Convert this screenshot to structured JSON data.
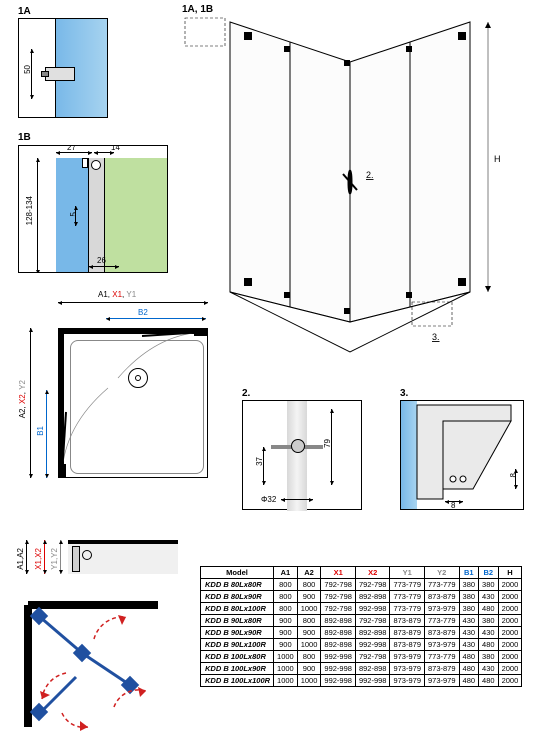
{
  "labels": {
    "d1a": "1A",
    "d1b": "1B",
    "d1a1b": "1A, 1B",
    "d2": "2.",
    "d3": "3.",
    "a1": "A1",
    "a2": "A2",
    "x1": "X1",
    "x2": "X2",
    "y1": "Y1",
    "y2": "Y2",
    "b1": "B1",
    "b2": "B2",
    "h": "H",
    "a1a2": "A1,A2",
    "x1x2": "X1,X2",
    "y1y2": "Y1,Y2",
    "a1x1y1": "A1, X1, Y1",
    "a2x2y2": "A2, X2, Y2"
  },
  "dims": {
    "d1a_50": "50",
    "d1b_27": "27",
    "d1b_14": "14",
    "d1b_5": "5",
    "d1b_26": "26",
    "d1b_128_134": "128-134",
    "d2_37": "37",
    "d2_79": "79",
    "d2_phi32": "Φ32",
    "d3_8h": "8",
    "d3_8v": "8"
  },
  "table": {
    "headers": {
      "model": "Model",
      "a1": "A1",
      "a2": "A2",
      "x1": "X1",
      "x2": "X2",
      "y1": "Y1",
      "y2": "Y2",
      "b1": "B1",
      "b2": "B2",
      "h": "H"
    },
    "rows": [
      {
        "model": "KDD B 80Lx80R",
        "a1": "800",
        "a2": "800",
        "x1": "792-798",
        "x2": "792-798",
        "y1": "773-779",
        "y2": "773-779",
        "b1": "380",
        "b2": "380",
        "h": "2000"
      },
      {
        "model": "KDD B 80Lx90R",
        "a1": "800",
        "a2": "900",
        "x1": "792-798",
        "x2": "892-898",
        "y1": "773-779",
        "y2": "873-879",
        "b1": "380",
        "b2": "430",
        "h": "2000"
      },
      {
        "model": "KDD B 80Lx100R",
        "a1": "800",
        "a2": "1000",
        "x1": "792-798",
        "x2": "992-998",
        "y1": "773-779",
        "y2": "973-979",
        "b1": "380",
        "b2": "480",
        "h": "2000"
      },
      {
        "model": "KDD B 90Lx80R",
        "a1": "900",
        "a2": "800",
        "x1": "892-898",
        "x2": "792-798",
        "y1": "873-879",
        "y2": "773-779",
        "b1": "430",
        "b2": "380",
        "h": "2000"
      },
      {
        "model": "KDD B 90Lx90R",
        "a1": "900",
        "a2": "900",
        "x1": "892-898",
        "x2": "892-898",
        "y1": "873-879",
        "y2": "873-879",
        "b1": "430",
        "b2": "430",
        "h": "2000"
      },
      {
        "model": "KDD B 90Lx100R",
        "a1": "900",
        "a2": "1000",
        "x1": "892-898",
        "x2": "992-998",
        "y1": "873-879",
        "y2": "973-979",
        "b1": "430",
        "b2": "480",
        "h": "2000"
      },
      {
        "model": "KDD B 100Lx80R",
        "a1": "1000",
        "a2": "800",
        "x1": "992-998",
        "x2": "792-798",
        "y1": "973-979",
        "y2": "773-779",
        "b1": "480",
        "b2": "380",
        "h": "2000"
      },
      {
        "model": "KDD B 100Lx90R",
        "a1": "1000",
        "a2": "900",
        "x1": "992-998",
        "x2": "892-898",
        "y1": "973-979",
        "y2": "873-879",
        "b1": "480",
        "b2": "430",
        "h": "2000"
      },
      {
        "model": "KDD B 100Lx100R",
        "a1": "1000",
        "a2": "1000",
        "x1": "992-998",
        "x2": "992-998",
        "y1": "973-979",
        "y2": "973-979",
        "b1": "480",
        "b2": "480",
        "h": "2000"
      }
    ]
  },
  "colors": {
    "glass_blue": "#78b8e8",
    "door_green": "#bfe0a0",
    "profile_gray": "#c0c0c0",
    "arrow_red": "#d02020",
    "node_blue": "#2050a0"
  }
}
